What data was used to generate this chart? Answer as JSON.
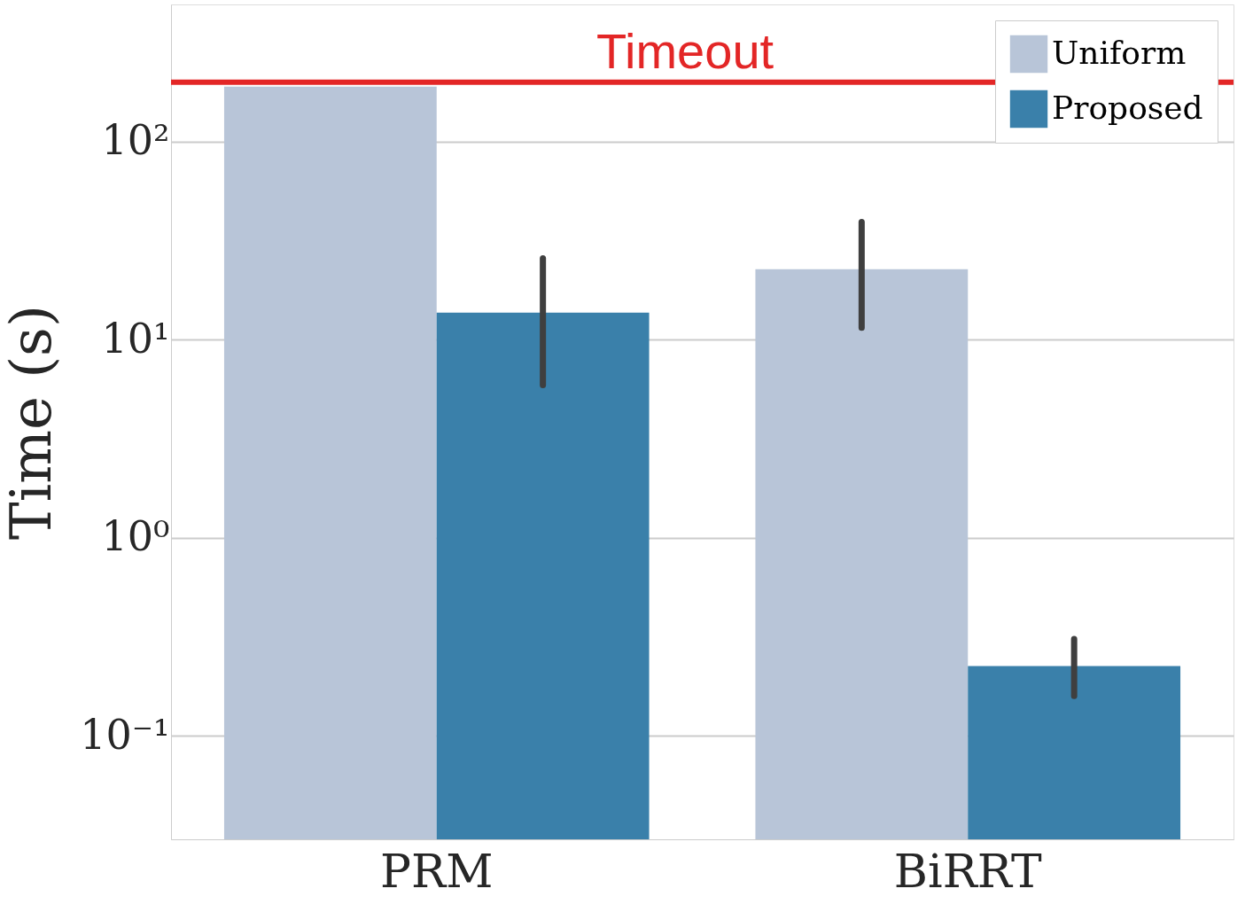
{
  "chart_data": {
    "type": "bar",
    "ylabel": "Time (s)",
    "categories": [
      "PRM",
      "BiRRT"
    ],
    "series": [
      {
        "name": "Uniform",
        "color": "#b8c5d8",
        "values": [
          190,
          22.7
        ],
        "errors": [
          null,
          [
            11.5,
            39.3
          ]
        ]
      },
      {
        "name": "Proposed",
        "color": "#3a80aa",
        "values": [
          13.7,
          0.225
        ],
        "errors": [
          [
            5.9,
            25.8
          ],
          [
            0.159,
            0.308
          ]
        ]
      }
    ],
    "log": true,
    "ylim": [
      0.03,
      494
    ],
    "yticks": [
      {
        "value": 0.1,
        "label": "10⁻¹"
      },
      {
        "value": 1,
        "label": "10⁰"
      },
      {
        "value": 10,
        "label": "10¹"
      },
      {
        "value": 100,
        "label": "10²"
      }
    ],
    "ref_lines": [
      {
        "axis": "y",
        "value": 200,
        "label": "Timeout",
        "color": "#e32626"
      }
    ],
    "grid": "y",
    "legend": "top right"
  }
}
